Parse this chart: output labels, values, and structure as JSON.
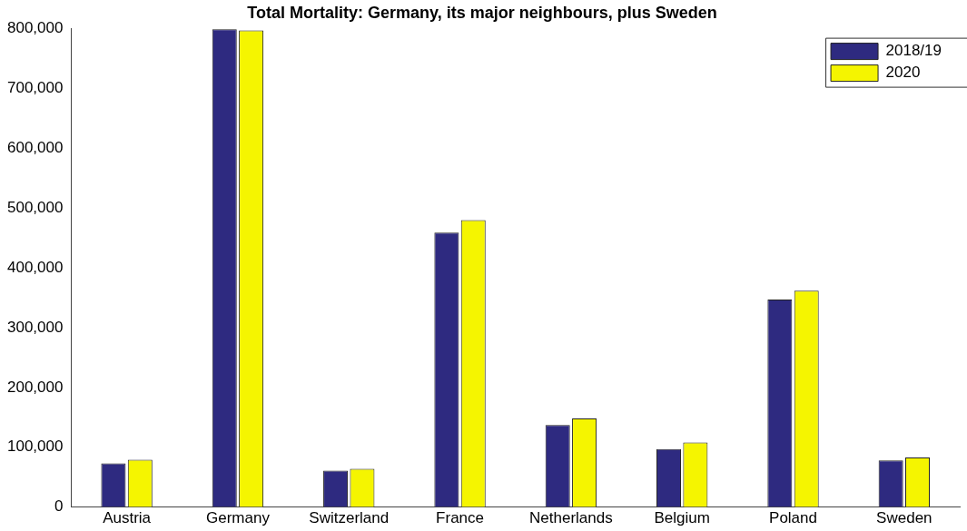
{
  "chart_data": {
    "type": "bar",
    "title": "Total Mortality: Germany, its major neighbours, plus Sweden",
    "categories": [
      "Austria",
      "Germany",
      "Switzerland",
      "France",
      "Netherlands",
      "Belgium",
      "Poland",
      "Sweden"
    ],
    "series": [
      {
        "name": "2018/19",
        "color": "#2e2a80",
        "values": [
          73000,
          799000,
          61000,
          459000,
          137000,
          97000,
          347000,
          78000
        ]
      },
      {
        "name": "2020",
        "color": "#f5f500",
        "values": [
          79000,
          797000,
          64000,
          480000,
          148000,
          108000,
          362000,
          83000
        ]
      }
    ],
    "ylim": [
      0,
      800000
    ],
    "yticks": [
      {
        "value": 0,
        "label": "0"
      },
      {
        "value": 100000,
        "label": "100,000"
      },
      {
        "value": 200000,
        "label": "200,000"
      },
      {
        "value": 300000,
        "label": "300,000"
      },
      {
        "value": 400000,
        "label": "400,000"
      },
      {
        "value": 500000,
        "label": "500,000"
      },
      {
        "value": 600000,
        "label": "600,000"
      },
      {
        "value": 700000,
        "label": "700,000"
      },
      {
        "value": 800000,
        "label": "800,000"
      }
    ],
    "grid": false,
    "legend": "top right"
  }
}
